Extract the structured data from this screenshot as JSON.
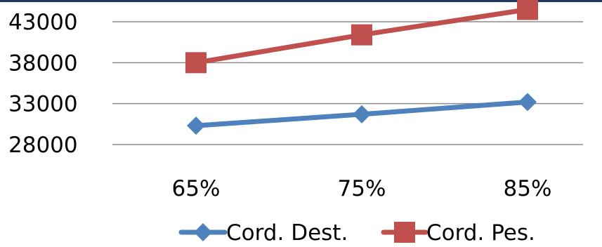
{
  "chart_data": {
    "type": "line",
    "title": "",
    "xlabel": "",
    "ylabel": "",
    "categories": [
      "65%",
      "75%",
      "85%"
    ],
    "y_ticks": [
      "28000",
      "33000",
      "38000",
      "43000"
    ],
    "ylim": [
      26000,
      46500
    ],
    "grid": true,
    "legend_position": "bottom",
    "series": [
      {
        "name": "Cord. Dest.",
        "values": [
          30300,
          31700,
          33200
        ],
        "color": "#4f81bd",
        "marker": "diamond"
      },
      {
        "name": "Cord. Pes.",
        "values": [
          38000,
          41400,
          44500
        ],
        "color": "#c0504d",
        "marker": "square"
      }
    ]
  }
}
